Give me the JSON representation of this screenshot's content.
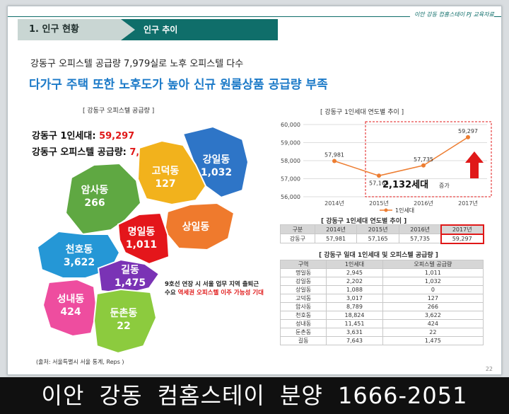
{
  "header": {
    "tag": "이안 강동 컴홈스테이 PJ 교육자료",
    "section": "1. 인구 현황",
    "subsection": "인구 추이"
  },
  "intro": {
    "line1": "강동구 오피스텔 공급량 7,979실로 노후 오피스텔 다수",
    "line2": "다가구 주택 또한 노후도가 높아 신규 원룸상품 공급량 부족"
  },
  "map": {
    "caption": "[ 강동구 오피스텔 공급량 ]",
    "stat1_label": "강동구 1인세대:",
    "stat1_value": "59,297",
    "stat2_label": "강동구 오피스텔 공급량:",
    "stat2_value": "7,979",
    "districts": [
      {
        "name": "강일동",
        "value": "1,032",
        "color": "#2e75c7"
      },
      {
        "name": "고덕동",
        "value": "127",
        "color": "#f2b21c"
      },
      {
        "name": "암사동",
        "value": "266",
        "color": "#5fa842"
      },
      {
        "name": "상일동",
        "value": "",
        "color": "#ef7a2d"
      },
      {
        "name": "명일동",
        "value": "1,011",
        "color": "#e4161b"
      },
      {
        "name": "천호동",
        "value": "3,622",
        "color": "#2597d6"
      },
      {
        "name": "길동",
        "value": "1,475",
        "color": "#7a33b5"
      },
      {
        "name": "성내동",
        "value": "424",
        "color": "#ee4d9f"
      },
      {
        "name": "둔촌동",
        "value": "22",
        "color": "#8ccb3e"
      }
    ],
    "note_line1": "9호선 연장 시 서울 업무 지역 출퇴근",
    "note_line2_prefix": "수요 ",
    "note_line2_red": "역세권 오피스텔 이주 가능성 기대",
    "source": "(출처: 서울특별시 서울 통계, Reps )"
  },
  "chart_caption": "[ 강동구 1인세대 연도별 추이 ]",
  "chart_data": {
    "type": "line",
    "x": [
      "2014년",
      "2015년",
      "2016년",
      "2017년"
    ],
    "series": [
      {
        "name": "1인세대",
        "values": [
          57981,
          57165,
          57735,
          59297
        ]
      }
    ],
    "data_labels": [
      "57,981",
      "57,165",
      "57,735",
      "59,297"
    ],
    "ylim": [
      56000,
      60000
    ],
    "yticks": [
      "56,000",
      "57,000",
      "58,000",
      "59,000",
      "60,000"
    ],
    "line_color": "#ed7d31",
    "legend": "1인세대",
    "annotation": "2,132세대",
    "annotation_suffix": "증가"
  },
  "table1": {
    "caption": "[ 강동구 1인세대 연도별 추이 ]",
    "headers": [
      "구분",
      "2014년",
      "2015년",
      "2016년",
      "2017년"
    ],
    "row": [
      "강동구",
      "57,981",
      "57,165",
      "57,735",
      "59,297"
    ]
  },
  "table2": {
    "caption": "[ 강동구 일대 1인세대 및 오피스텔 공급량 ]",
    "headers": [
      "구역",
      "1인세대",
      "오피스텔 공급량"
    ],
    "rows": [
      [
        "명일동",
        "2,945",
        "1,011"
      ],
      [
        "강일동",
        "2,202",
        "1,032"
      ],
      [
        "상일동",
        "1,088",
        "0"
      ],
      [
        "고덕동",
        "3,017",
        "127"
      ],
      [
        "암사동",
        "8,789",
        "266"
      ],
      [
        "천호동",
        "18,824",
        "3,622"
      ],
      [
        "성내동",
        "11,451",
        "424"
      ],
      [
        "둔촌동",
        "3,631",
        "22"
      ],
      [
        "길동",
        "7,643",
        "1,475"
      ]
    ]
  },
  "page_number": "22",
  "banner": "이안 강동 컴홈스테이 분양 1666-2051"
}
